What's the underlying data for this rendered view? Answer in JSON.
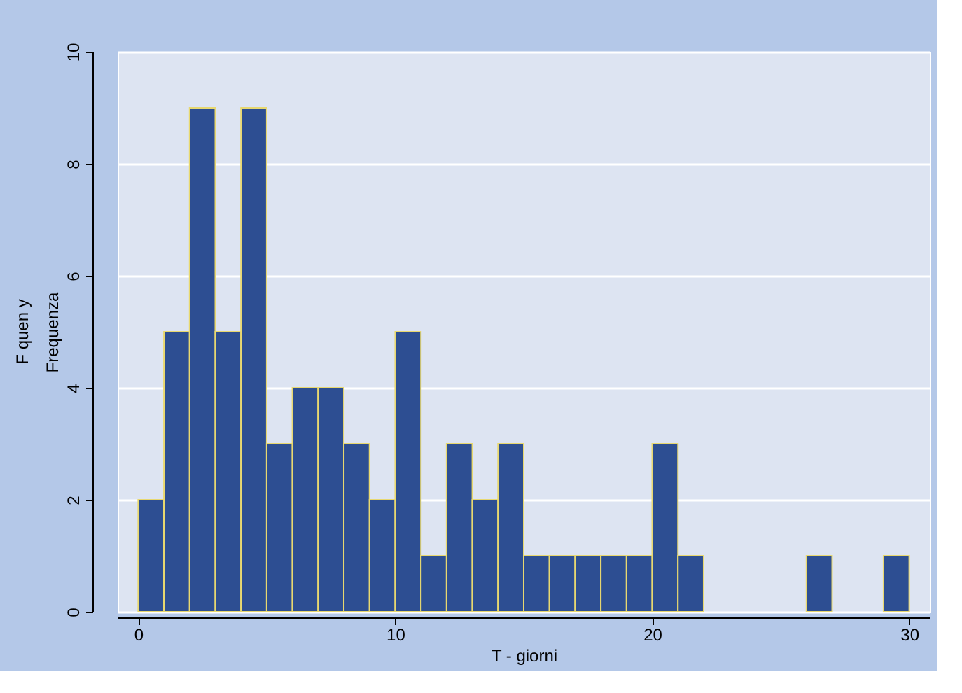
{
  "chart_data": {
    "type": "histogram",
    "xlabel": "T - giorni",
    "ylabel": "Frequenza",
    "annotations": [
      "F quen y"
    ],
    "bins": [
      0,
      1,
      2,
      3,
      4,
      5,
      6,
      7,
      8,
      9,
      10,
      11,
      12,
      13,
      14,
      15,
      16,
      17,
      18,
      19,
      20,
      21,
      22,
      26,
      27,
      29,
      30
    ],
    "values": [
      2,
      5,
      9,
      5,
      9,
      3,
      4,
      4,
      3,
      2,
      5,
      1,
      3,
      2,
      3,
      1,
      1,
      1,
      1,
      1,
      3,
      1,
      0,
      1,
      0,
      1
    ],
    "color": "#2d4e92",
    "xlim": [
      -0.8,
      30.8
    ],
    "xticks": [
      0,
      10,
      20,
      30
    ],
    "ylim": [
      0,
      10
    ],
    "yticks": [
      0,
      2,
      4,
      6,
      8,
      10
    ],
    "grid": "y"
  }
}
